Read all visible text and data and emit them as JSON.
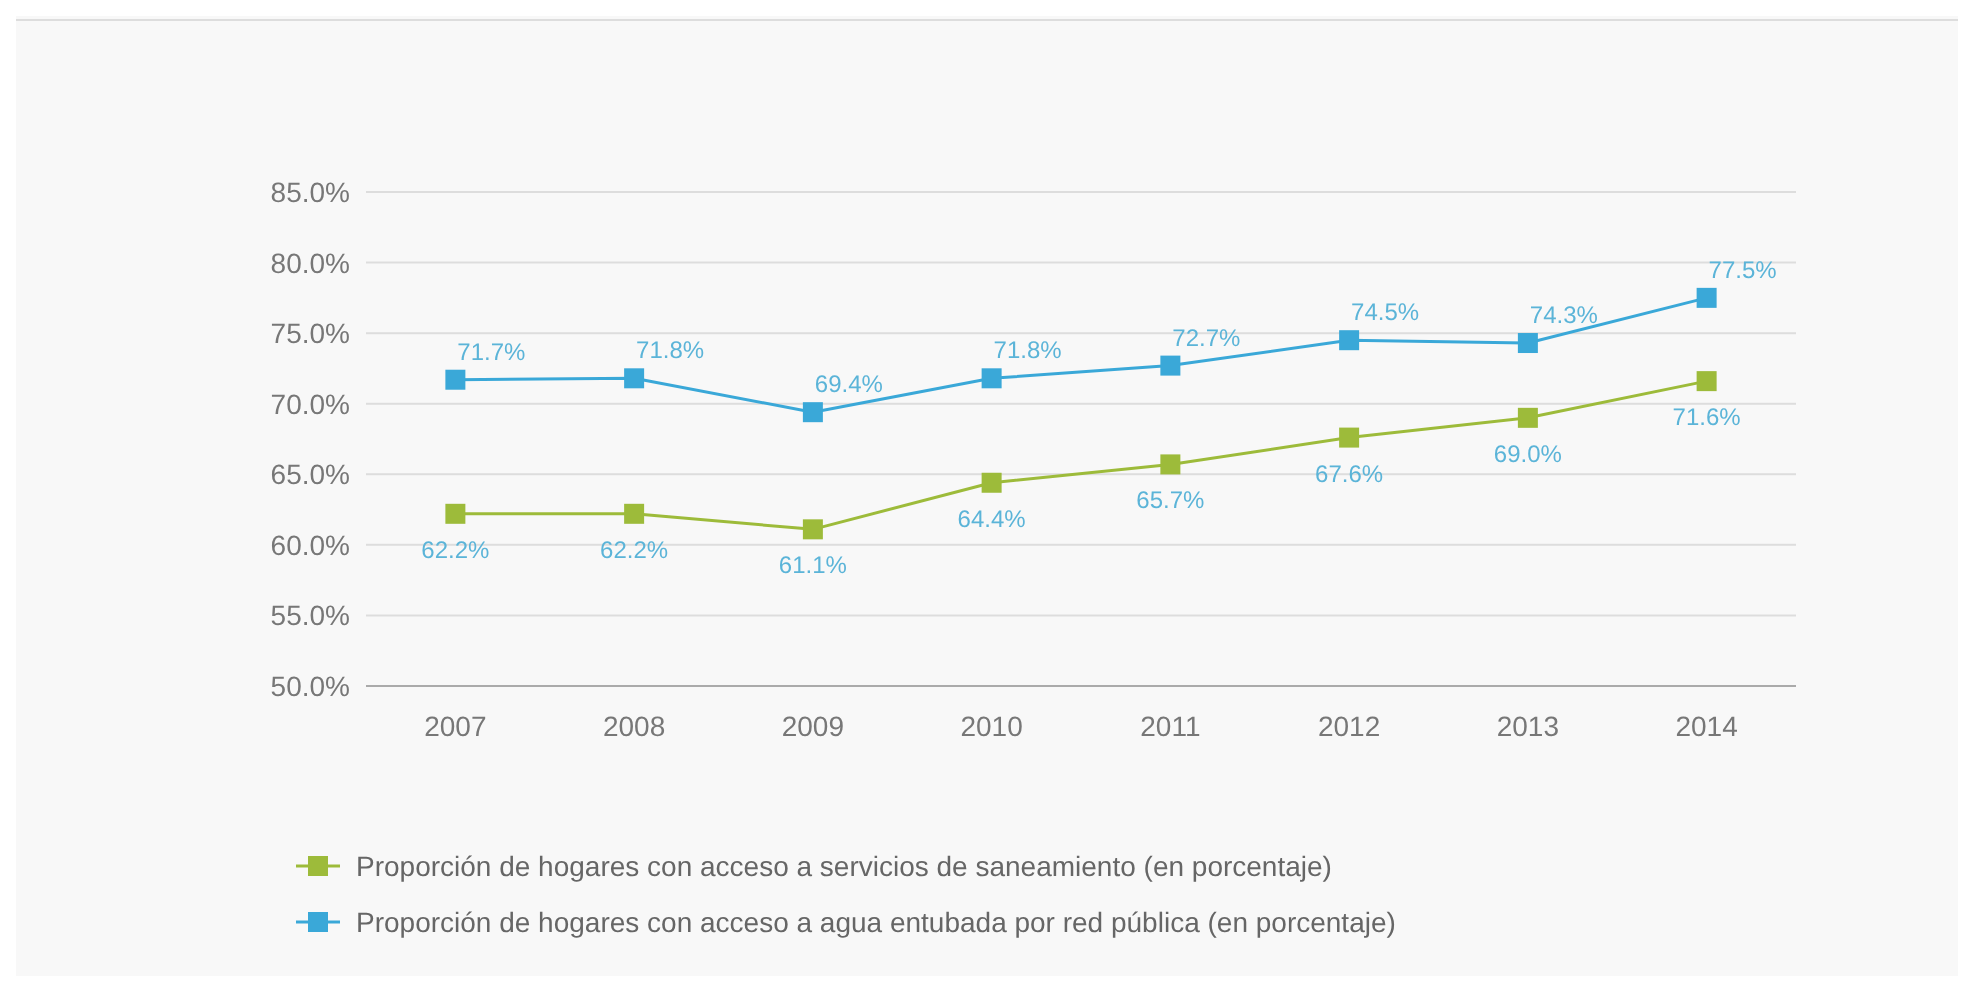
{
  "chart_data": {
    "type": "line",
    "categories": [
      "2007",
      "2008",
      "2009",
      "2010",
      "2011",
      "2012",
      "2013",
      "2014"
    ],
    "series": [
      {
        "name": "Proporción de hogares con acceso a servicios de saneamiento (en porcentaje)",
        "color": "#9dbb3a",
        "values": [
          62.2,
          62.2,
          61.1,
          64.4,
          65.7,
          67.6,
          69.0,
          71.6
        ],
        "value_labels": [
          "62.2%",
          "62.2%",
          "61.1%",
          "64.4%",
          "65.7%",
          "67.6%",
          "69.0%",
          "71.6%"
        ]
      },
      {
        "name": "Proporción de hogares con acceso a agua entubada por red pública (en porcentaje)",
        "color": "#3aa8d8",
        "values": [
          71.7,
          71.8,
          69.4,
          71.8,
          72.7,
          74.5,
          74.3,
          77.5
        ],
        "value_labels": [
          "71.7%",
          "71.8%",
          "69.4%",
          "71.8%",
          "72.7%",
          "74.5%",
          "74.3%",
          "77.5%"
        ]
      }
    ],
    "ylim": [
      50,
      85
    ],
    "yticks": [
      {
        "value": 50,
        "label": "50.0%"
      },
      {
        "value": 55,
        "label": "55.0%"
      },
      {
        "value": 60,
        "label": "60.0%"
      },
      {
        "value": 65,
        "label": "65.0%"
      },
      {
        "value": 70,
        "label": "70.0%"
      },
      {
        "value": 75,
        "label": "75.0%"
      },
      {
        "value": 80,
        "label": "80.0%"
      },
      {
        "value": 85,
        "label": "85.0%"
      }
    ],
    "grid": "y",
    "legend": "bottom left",
    "marker": "square",
    "line_style": "solid"
  }
}
